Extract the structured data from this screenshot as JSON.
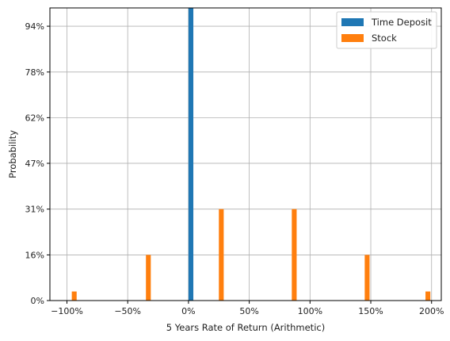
{
  "chart_data": {
    "type": "bar",
    "title": "",
    "xlabel": "5 Years Rate of Return (Arithmetic)",
    "ylabel": "Probability",
    "xlim": [
      -114,
      208
    ],
    "ylim": [
      0,
      1.0
    ],
    "grid": true,
    "legend_placement": "top-right",
    "x_ticks": [
      {
        "value": -100,
        "label": "−100%"
      },
      {
        "value": -50,
        "label": "−50%"
      },
      {
        "value": 0,
        "label": "0%"
      },
      {
        "value": 50,
        "label": "50%"
      },
      {
        "value": 100,
        "label": "100%"
      },
      {
        "value": 150,
        "label": "150%"
      },
      {
        "value": 200,
        "label": "200%"
      }
    ],
    "y_ticks": [
      {
        "value": 0.0,
        "label": "0%"
      },
      {
        "value": 0.156,
        "label": "16%"
      },
      {
        "value": 0.3125,
        "label": "31%"
      },
      {
        "value": 0.469,
        "label": "47%"
      },
      {
        "value": 0.625,
        "label": "62%"
      },
      {
        "value": 0.781,
        "label": "78%"
      },
      {
        "value": 0.9375,
        "label": "94%"
      }
    ],
    "bar_width": 4,
    "series": [
      {
        "name": "Time Deposit",
        "color": "#1f77b4",
        "points": [
          {
            "x": 2,
            "y": 1.0
          }
        ]
      },
      {
        "name": "Stock",
        "color": "#ff7f0e",
        "points": [
          {
            "x": -94,
            "y": 0.031
          },
          {
            "x": -33,
            "y": 0.156
          },
          {
            "x": 27,
            "y": 0.3125
          },
          {
            "x": 87,
            "y": 0.3125
          },
          {
            "x": 147,
            "y": 0.156
          },
          {
            "x": 197,
            "y": 0.031
          }
        ]
      }
    ]
  }
}
